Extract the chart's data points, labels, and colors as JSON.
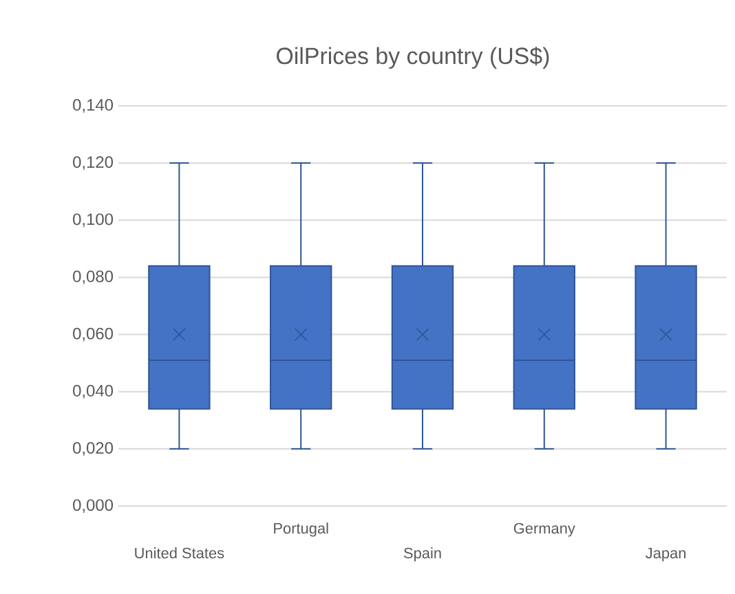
{
  "chart_data": {
    "type": "box",
    "title": "OilPrices by country (US$)",
    "categories": [
      "United States",
      "Portugal",
      "Spain",
      "Germany",
      "Japan"
    ],
    "boxes": [
      {
        "low": 0.02,
        "q1": 0.034,
        "median": 0.051,
        "q3": 0.084,
        "high": 0.12,
        "mean": 0.06
      },
      {
        "low": 0.02,
        "q1": 0.034,
        "median": 0.051,
        "q3": 0.084,
        "high": 0.12,
        "mean": 0.06
      },
      {
        "low": 0.02,
        "q1": 0.034,
        "median": 0.051,
        "q3": 0.084,
        "high": 0.12,
        "mean": 0.06
      },
      {
        "low": 0.02,
        "q1": 0.034,
        "median": 0.051,
        "q3": 0.084,
        "high": 0.12,
        "mean": 0.06
      },
      {
        "low": 0.02,
        "q1": 0.034,
        "median": 0.051,
        "q3": 0.084,
        "high": 0.12,
        "mean": 0.06
      }
    ],
    "color": "#4472c4",
    "ylim": [
      0,
      0.14
    ],
    "yticks": [
      {
        "value": 0,
        "label": "0,000"
      },
      {
        "value": 0.02,
        "label": "0,020"
      },
      {
        "value": 0.04,
        "label": "0,040"
      },
      {
        "value": 0.06,
        "label": "0,060"
      },
      {
        "value": 0.08,
        "label": "0,080"
      },
      {
        "value": 0.1,
        "label": "0,100"
      },
      {
        "value": 0.12,
        "label": "0,120"
      },
      {
        "value": 0.14,
        "label": "0,140"
      }
    ],
    "grid": "y",
    "marker": "cross"
  }
}
